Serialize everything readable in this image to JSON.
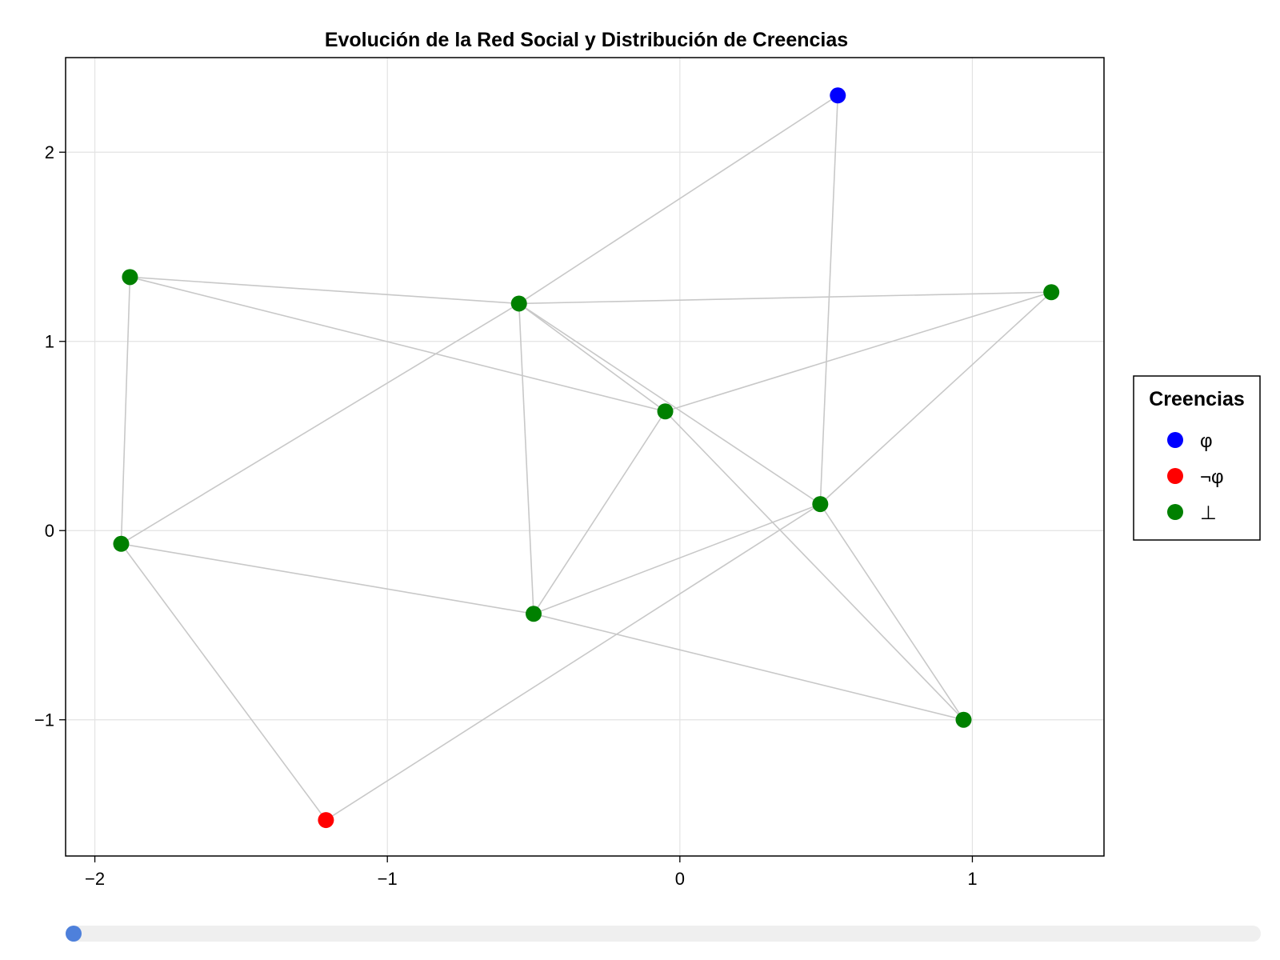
{
  "chart_data": {
    "type": "scatter",
    "title": "Evolución de la Red Social y Distribución de Creencias",
    "xlabel": "",
    "ylabel": "",
    "xlim": [
      -2.1,
      1.45
    ],
    "ylim": [
      -1.72,
      2.5
    ],
    "xticks": [
      -2,
      -1,
      0,
      1
    ],
    "yticks": [
      -1,
      0,
      1,
      2
    ],
    "xtick_labels": [
      "−2",
      "−1",
      "0",
      "1"
    ],
    "ytick_labels": [
      "−1",
      "0",
      "1",
      "2"
    ],
    "grid": true,
    "nodes": [
      {
        "x": 0.54,
        "y": 2.3,
        "belief": "φ"
      },
      {
        "x": -1.88,
        "y": 1.34,
        "belief": "⊥"
      },
      {
        "x": -0.55,
        "y": 1.2,
        "belief": "⊥"
      },
      {
        "x": 1.27,
        "y": 1.26,
        "belief": "⊥"
      },
      {
        "x": -0.05,
        "y": 0.63,
        "belief": "⊥"
      },
      {
        "x": 0.48,
        "y": 0.14,
        "belief": "⊥"
      },
      {
        "x": -1.91,
        "y": -0.07,
        "belief": "⊥"
      },
      {
        "x": -0.5,
        "y": -0.44,
        "belief": "⊥"
      },
      {
        "x": 0.97,
        "y": -1.0,
        "belief": "⊥"
      },
      {
        "x": -1.21,
        "y": -1.53,
        "belief": "¬φ"
      }
    ],
    "edges": [
      [
        0,
        2
      ],
      [
        0,
        5
      ],
      [
        1,
        2
      ],
      [
        1,
        4
      ],
      [
        1,
        6
      ],
      [
        2,
        3
      ],
      [
        2,
        4
      ],
      [
        2,
        5
      ],
      [
        2,
        6
      ],
      [
        2,
        7
      ],
      [
        3,
        4
      ],
      [
        3,
        5
      ],
      [
        4,
        7
      ],
      [
        4,
        8
      ],
      [
        5,
        7
      ],
      [
        5,
        8
      ],
      [
        5,
        9
      ],
      [
        6,
        7
      ],
      [
        6,
        9
      ],
      [
        7,
        8
      ]
    ],
    "legend": {
      "title": "Creencias",
      "position": "right",
      "entries": [
        {
          "label": "φ",
          "color": "#0000ff"
        },
        {
          "label": "¬φ",
          "color": "#ff0000"
        },
        {
          "label": "⊥",
          "color": "#008000"
        }
      ]
    },
    "edge_color": "#c8c8c8"
  },
  "slider": {
    "value": 0
  }
}
